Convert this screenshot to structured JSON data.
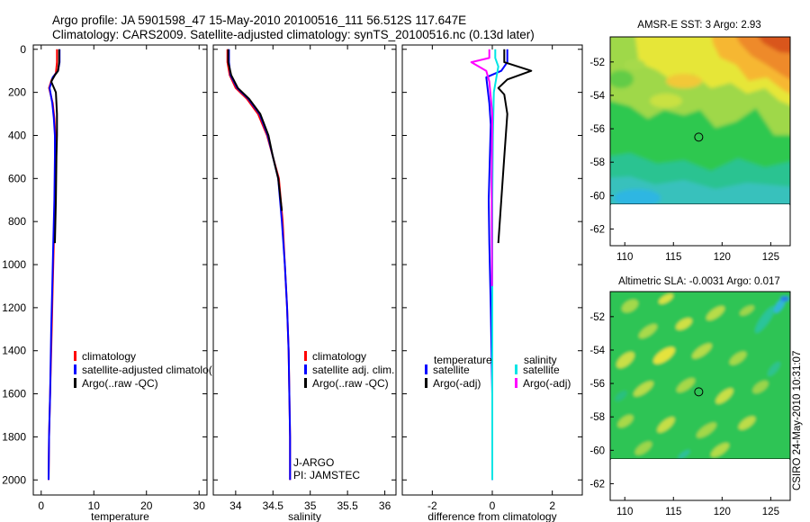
{
  "header": {
    "line1": "Argo profile: JA 5901598_47 15-May-2010 20100516_111 56.512S 117.647E",
    "line2": "Climatology: CARS2009. Satellite-adjusted climatology: synTS_20100516.nc (0.13d later)"
  },
  "colors": {
    "climatology": "#ff0000",
    "satellite": "#0000ff",
    "argo": "#000000",
    "sal_satellite": "#00e5e5",
    "sal_argo": "#ff00ff"
  },
  "chart_data": [
    {
      "type": "line",
      "name": "temperature-profile",
      "xlabel": "temperature",
      "ylabel": "",
      "xlim": [
        -1.5,
        31.5
      ],
      "ylim": [
        2070,
        -20
      ],
      "xticks": [
        0,
        10,
        20,
        30
      ],
      "xtick_labels": [
        "0",
        "10",
        "20",
        "30"
      ],
      "yticks": [
        0,
        200,
        400,
        600,
        800,
        1000,
        1200,
        1400,
        1600,
        1800,
        2000
      ],
      "ytick_labels": [
        "0",
        "200",
        "400",
        "600",
        "800",
        "1000",
        "1200",
        "1400",
        "1600",
        "1800",
        "2000"
      ],
      "series": [
        {
          "name": "climatology",
          "color": "#ff0000",
          "x": [
            3.0,
            3.0,
            2.8,
            2.0,
            1.5,
            2.2,
            2.5,
            2.7,
            2.7,
            2.6,
            2.4,
            2.2,
            2.0,
            1.7,
            1.5,
            1.4
          ],
          "y": [
            0,
            60,
            110,
            140,
            180,
            250,
            320,
            400,
            500,
            700,
            900,
            1100,
            1300,
            1600,
            1800,
            2000
          ]
        },
        {
          "name": "satellite-adjusted climatology",
          "color": "#0000ff",
          "x": [
            3.5,
            3.5,
            3.2,
            2.2,
            1.6,
            2.1,
            2.4,
            2.6,
            2.6,
            2.5,
            2.3,
            2.1,
            1.9,
            1.7,
            1.5,
            1.4
          ],
          "y": [
            0,
            60,
            100,
            130,
            180,
            250,
            320,
            400,
            500,
            700,
            900,
            1100,
            1300,
            1600,
            1800,
            2000
          ]
        },
        {
          "name": "Argo(..raw -QC)",
          "color": "#000000",
          "x": [
            3.4,
            3.4,
            3.2,
            2.6,
            1.9,
            2.8,
            3.0,
            3.0,
            2.9,
            2.8,
            2.6
          ],
          "y": [
            0,
            60,
            100,
            120,
            150,
            200,
            300,
            400,
            500,
            700,
            900
          ]
        }
      ],
      "legend": {
        "position": "lower-left",
        "entries": [
          "climatology",
          "satellite-adjusted climatolo(",
          "Argo(..raw -QC)"
        ]
      }
    },
    {
      "type": "line",
      "name": "salinity-profile",
      "xlabel": "salinity",
      "xlim": [
        33.7,
        36.15
      ],
      "ylim": [
        2070,
        -20
      ],
      "xticks": [
        34,
        34.5,
        35,
        35.5,
        36
      ],
      "xtick_labels": [
        "34",
        "34.5",
        "35",
        "35.5",
        "36"
      ],
      "series": [
        {
          "name": "climatology",
          "color": "#ff0000",
          "x": [
            33.89,
            33.89,
            33.92,
            34.0,
            34.15,
            34.3,
            34.42,
            34.5,
            34.58,
            34.63,
            34.66,
            34.69,
            34.71,
            34.72,
            34.73,
            34.73
          ],
          "y": [
            0,
            60,
            120,
            180,
            230,
            300,
            400,
            500,
            600,
            800,
            1000,
            1200,
            1400,
            1600,
            1800,
            2000
          ]
        },
        {
          "name": "satellite adj. clim.",
          "color": "#0000ff",
          "x": [
            33.91,
            33.91,
            33.93,
            34.02,
            34.17,
            34.32,
            34.43,
            34.5,
            34.57,
            34.62,
            34.66,
            34.69,
            34.71,
            34.72,
            34.73,
            34.73
          ],
          "y": [
            0,
            60,
            120,
            180,
            230,
            300,
            400,
            500,
            600,
            800,
            1000,
            1200,
            1400,
            1600,
            1800,
            2000
          ]
        },
        {
          "name": "Argo(..raw -QC)",
          "color": "#000000",
          "x": [
            33.9,
            33.9,
            33.94,
            34.03,
            34.18,
            34.33,
            34.44,
            34.5,
            34.57,
            34.62
          ],
          "y": [
            0,
            60,
            120,
            180,
            230,
            300,
            400,
            500,
            600,
            750
          ]
        }
      ],
      "legend": {
        "position": "lower-left",
        "entries": [
          "climatology",
          "satellite adj. clim.",
          "Argo(..raw -QC)"
        ]
      },
      "annotation": [
        "J-ARGO",
        "PI: JAMSTEC"
      ]
    },
    {
      "type": "line",
      "name": "difference-profile",
      "xlabel": "difference from climatology",
      "xlim": [
        -3.0,
        3.0
      ],
      "ylim": [
        2070,
        -20
      ],
      "xticks": [
        -2,
        0,
        2
      ],
      "xtick_labels": [
        "-2",
        "0",
        "2"
      ],
      "series": [
        {
          "name": "temperature satellite",
          "color": "#0000ff",
          "x": [
            0.5,
            0.5,
            0.3,
            -0.2,
            -0.1,
            -0.05,
            -0.08,
            -0.12,
            -0.1,
            -0.05,
            0.0,
            0.0
          ],
          "y": [
            0,
            60,
            100,
            130,
            250,
            350,
            500,
            700,
            900,
            1200,
            1600,
            2000
          ]
        },
        {
          "name": "temperature Argo(-adj)",
          "color": "#000000",
          "x": [
            0.4,
            0.4,
            1.3,
            0.5,
            0.2,
            0.4,
            0.5,
            0.4,
            0.3,
            0.2
          ],
          "y": [
            0,
            60,
            100,
            140,
            180,
            210,
            300,
            500,
            700,
            900
          ]
        },
        {
          "name": "salinity satellite",
          "color": "#00e5e5",
          "x": [
            0.1,
            0.1,
            0.2,
            0.15,
            0.05,
            0.02,
            0.0,
            0.0,
            0.0
          ],
          "y": [
            0,
            40,
            80,
            120,
            200,
            400,
            700,
            1200,
            2000
          ]
        },
        {
          "name": "salinity Argo(-adj)",
          "color": "#ff00ff",
          "x": [
            -0.1,
            -0.1,
            -0.7,
            -0.2,
            -0.1,
            0.0,
            -0.02,
            -0.01,
            -0.01
          ],
          "y": [
            0,
            40,
            60,
            100,
            150,
            300,
            600,
            1000,
            1100
          ]
        }
      ],
      "legend": {
        "position": "lower-left",
        "headers": [
          "temperature",
          "salinity"
        ],
        "entries": [
          "satellite",
          "Argo(-adj)",
          "satellite",
          "Argo(-adj)"
        ]
      }
    },
    {
      "type": "heatmap",
      "name": "sst-map",
      "title": "AMSR-E SST: 3 Argo: 2.93",
      "xlim": [
        108.5,
        127
      ],
      "ylim": [
        -63,
        -50.5
      ],
      "xticks": [
        110,
        115,
        120,
        125
      ],
      "xtick_labels": [
        "110",
        "115",
        "120",
        "125"
      ],
      "yticks": [
        -52,
        -54,
        -56,
        -58,
        -60,
        -62
      ],
      "ytick_labels": [
        "-52",
        "-54",
        "-56",
        "-58",
        "-60",
        "-62"
      ],
      "data_extent_lat": [
        -60,
        -50.5
      ],
      "marker": {
        "lon": 117.6,
        "lat": -56.5
      }
    },
    {
      "type": "heatmap",
      "name": "sla-map",
      "title": "Altimetric SLA: -0.0031  Argo: 0.017",
      "xlim": [
        108.5,
        127
      ],
      "ylim": [
        -63,
        -50.5
      ],
      "xticks": [
        110,
        115,
        120,
        125
      ],
      "xtick_labels": [
        "110",
        "115",
        "120",
        "125"
      ],
      "yticks": [
        -52,
        -54,
        -56,
        -58,
        -60,
        -62
      ],
      "ytick_labels": [
        "-52",
        "-54",
        "-56",
        "-58",
        "-60",
        "-62"
      ],
      "data_extent_lat": [
        -60,
        -50.5
      ],
      "marker": {
        "lon": 117.6,
        "lat": -56.5
      }
    }
  ],
  "footer_stamp": "CSIRO 24-May-2010 10:31:07"
}
